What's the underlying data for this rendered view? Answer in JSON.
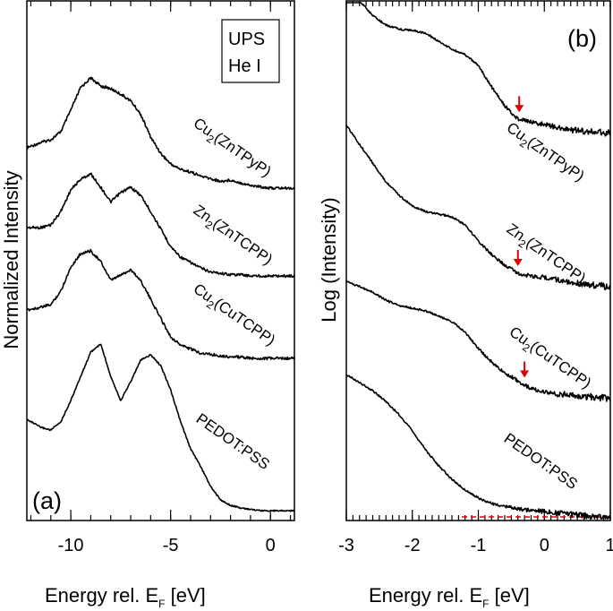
{
  "chart_data": [
    {
      "panel": "(a)",
      "type": "line",
      "xlabel_main": "Energy rel. E",
      "xlabel_sub": "F",
      "xlabel_tail": " [eV]",
      "ylabel": "Normalized Intensity",
      "xlim": [
        -12.2,
        1.2
      ],
      "x_ticks": [
        "-10",
        "-5",
        "0"
      ],
      "x_tick_values": [
        -10,
        -5,
        0
      ],
      "legend_box": [
        "UPS",
        "He I"
      ],
      "series": [
        {
          "label_parts": [
            "Cu",
            "2",
            "(ZnTPyP)"
          ],
          "x": [
            -12.2,
            -11.5,
            -11.0,
            -10.5,
            -10.0,
            -9.5,
            -9.0,
            -8.5,
            -8.0,
            -7.5,
            -7.0,
            -6.5,
            -6.0,
            -5.5,
            -5.0,
            -4.5,
            -4.0,
            -3.5,
            -3.0,
            -2.5,
            -2.0,
            -1.5,
            -1.0,
            -0.5,
            0.0,
            0.5,
            1.2
          ],
          "y": [
            0.3,
            0.34,
            0.36,
            0.42,
            0.58,
            0.75,
            0.82,
            0.76,
            0.74,
            0.7,
            0.65,
            0.55,
            0.38,
            0.26,
            0.18,
            0.14,
            0.12,
            0.09,
            0.07,
            0.05,
            0.06,
            0.04,
            0.02,
            0.01,
            0.0,
            0.0,
            0.0
          ]
        },
        {
          "label_parts": [
            "Zn",
            "2",
            "(ZnTCPP)"
          ],
          "x": [
            -12.2,
            -11.5,
            -11.0,
            -10.5,
            -10.0,
            -9.5,
            -9.0,
            -8.5,
            -8.0,
            -7.5,
            -7.0,
            -6.5,
            -6.0,
            -5.5,
            -5.0,
            -4.5,
            -4.0,
            -3.5,
            -3.0,
            -2.5,
            -2.0,
            -1.5,
            -1.0,
            -0.5,
            0.0,
            0.5,
            1.2
          ],
          "y": [
            0.36,
            0.36,
            0.38,
            0.48,
            0.64,
            0.72,
            0.76,
            0.66,
            0.55,
            0.62,
            0.66,
            0.6,
            0.48,
            0.35,
            0.22,
            0.14,
            0.1,
            0.06,
            0.03,
            0.02,
            0.01,
            0.01,
            0.0,
            0.0,
            0.0,
            0.0,
            0.0
          ]
        },
        {
          "label_parts": [
            "Cu",
            "2",
            "(CuTCPP)"
          ],
          "x": [
            -12.2,
            -11.5,
            -11.0,
            -10.5,
            -10.0,
            -9.5,
            -9.0,
            -8.5,
            -8.0,
            -7.5,
            -7.0,
            -6.5,
            -6.0,
            -5.5,
            -5.0,
            -4.5,
            -4.0,
            -3.5,
            -3.0,
            -2.5,
            -2.0,
            -1.5,
            -1.0,
            -0.5,
            0.0,
            0.5,
            1.2
          ],
          "y": [
            0.36,
            0.38,
            0.4,
            0.5,
            0.68,
            0.78,
            0.8,
            0.72,
            0.58,
            0.62,
            0.66,
            0.58,
            0.44,
            0.3,
            0.16,
            0.1,
            0.07,
            0.04,
            0.03,
            0.02,
            0.01,
            0.01,
            0.0,
            0.0,
            0.0,
            0.0,
            0.0
          ]
        },
        {
          "label_parts": [
            "PEDOT:PSS",
            "",
            ""
          ],
          "x": [
            -12.2,
            -11.5,
            -11.0,
            -10.5,
            -10.0,
            -9.5,
            -9.0,
            -8.5,
            -8.0,
            -7.5,
            -7.0,
            -6.5,
            -6.0,
            -5.5,
            -5.0,
            -4.5,
            -4.0,
            -3.5,
            -3.0,
            -2.5,
            -2.0,
            -1.5,
            -1.0,
            -0.5,
            0.0,
            0.5,
            1.2
          ],
          "y": [
            0.68,
            0.62,
            0.6,
            0.66,
            0.82,
            1.0,
            1.18,
            1.24,
            1.0,
            0.82,
            0.96,
            1.12,
            1.16,
            1.08,
            0.9,
            0.66,
            0.46,
            0.33,
            0.18,
            0.08,
            0.04,
            0.02,
            0.01,
            0.0,
            0.0,
            0.0,
            0.0
          ]
        }
      ]
    },
    {
      "panel": "(b)",
      "type": "line",
      "xlabel_main": "Energy rel. E",
      "xlabel_sub": "F",
      "xlabel_tail": " [eV]",
      "ylabel": "Log (Intensity)",
      "xlim": [
        -3,
        1
      ],
      "x_ticks": [
        "-3",
        "-2",
        "-1",
        "0",
        "1"
      ],
      "x_tick_values": [
        -3,
        -2,
        -1,
        0,
        1
      ],
      "series": [
        {
          "label_parts": [
            "Cu",
            "2",
            "(ZnTPyP)"
          ],
          "arrow_x": -0.38,
          "x": [
            -3.0,
            -2.8,
            -2.6,
            -2.4,
            -2.2,
            -2.0,
            -1.8,
            -1.6,
            -1.4,
            -1.2,
            -1.0,
            -0.8,
            -0.6,
            -0.4,
            -0.2,
            0.0,
            0.2,
            0.4,
            0.6,
            0.8,
            1.0
          ],
          "y": [
            1.38,
            1.26,
            1.15,
            1.08,
            1.05,
            1.04,
            1.02,
            0.96,
            0.9,
            0.86,
            0.78,
            0.62,
            0.48,
            0.38,
            0.36,
            0.34,
            0.32,
            0.3,
            0.29,
            0.28,
            0.28
          ]
        },
        {
          "label_parts": [
            "Zn",
            "2",
            "(ZnTCPP)"
          ],
          "arrow_x": -0.4,
          "x": [
            -3.0,
            -2.8,
            -2.6,
            -2.4,
            -2.2,
            -2.0,
            -1.8,
            -1.6,
            -1.4,
            -1.2,
            -1.0,
            -0.8,
            -0.6,
            -0.4,
            -0.2,
            0.0,
            0.2,
            0.4,
            0.6,
            0.8,
            1.0
          ],
          "y": [
            1.0,
            0.86,
            0.72,
            0.58,
            0.48,
            0.4,
            0.36,
            0.34,
            0.32,
            0.26,
            0.14,
            0.04,
            -0.04,
            -0.1,
            -0.12,
            -0.13,
            -0.15,
            -0.17,
            -0.18,
            -0.19,
            -0.2
          ]
        },
        {
          "label_parts": [
            "Cu",
            "2",
            "(CuTCPP)"
          ],
          "arrow_x": -0.3,
          "x": [
            -3.0,
            -2.8,
            -2.6,
            -2.4,
            -2.2,
            -2.0,
            -1.8,
            -1.6,
            -1.4,
            -1.2,
            -1.0,
            -0.8,
            -0.6,
            -0.4,
            -0.2,
            0.0,
            0.2,
            0.4,
            0.6,
            0.8,
            1.0
          ],
          "y": [
            0.34,
            0.3,
            0.26,
            0.2,
            0.16,
            0.14,
            0.12,
            0.08,
            0.04,
            -0.04,
            -0.16,
            -0.26,
            -0.34,
            -0.4,
            -0.46,
            -0.48,
            -0.5,
            -0.5,
            -0.52,
            -0.52,
            -0.54
          ]
        },
        {
          "label_parts": [
            "PEDOT:PSS",
            "",
            ""
          ],
          "x": [
            -3.0,
            -2.8,
            -2.6,
            -2.4,
            -2.2,
            -2.0,
            -1.8,
            -1.6,
            -1.4,
            -1.2,
            -1.0,
            -0.8,
            -0.6,
            -0.4,
            -0.2,
            0.0,
            0.2,
            0.4,
            0.6,
            0.8,
            1.0
          ],
          "y": [
            0.08,
            0.02,
            -0.04,
            -0.12,
            -0.22,
            -0.34,
            -0.48,
            -0.6,
            -0.7,
            -0.78,
            -0.84,
            -0.88,
            -0.9,
            -0.92,
            -0.93,
            -0.94,
            -0.95,
            -0.96,
            -0.97,
            -0.98,
            -0.99
          ]
        }
      ],
      "baseline": {
        "color": "#e00000",
        "x_from": -1.25,
        "x_to": 1.0,
        "style": "dashed"
      },
      "arrow_color": "#e00000"
    }
  ]
}
